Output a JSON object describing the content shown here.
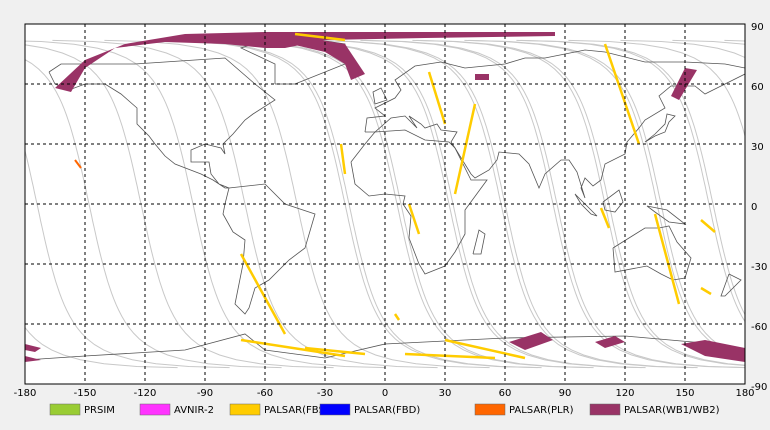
{
  "map": {
    "xlim": [
      -180,
      180
    ],
    "ylim": [
      -90,
      90
    ],
    "xticks": [
      -180,
      -150,
      -120,
      -90,
      -60,
      -30,
      0,
      30,
      60,
      90,
      120,
      150,
      180
    ],
    "yticks": [
      -90,
      -60,
      -30,
      0,
      30,
      60,
      90
    ],
    "grid": true,
    "legend": [
      {
        "name": "PRSIM",
        "color": "#99cc33"
      },
      {
        "name": "AVNIR-2",
        "color": "#ff33ff"
      },
      {
        "name": "PALSAR(FBS)",
        "color": "#ffcc00"
      },
      {
        "name": "PALSAR(FBD)",
        "color": "#0000ff"
      },
      {
        "name": "PALSAR(PLR)",
        "color": "#ff6600"
      },
      {
        "name": "PALSAR(WB1/WB2)",
        "color": "#993366"
      }
    ]
  }
}
